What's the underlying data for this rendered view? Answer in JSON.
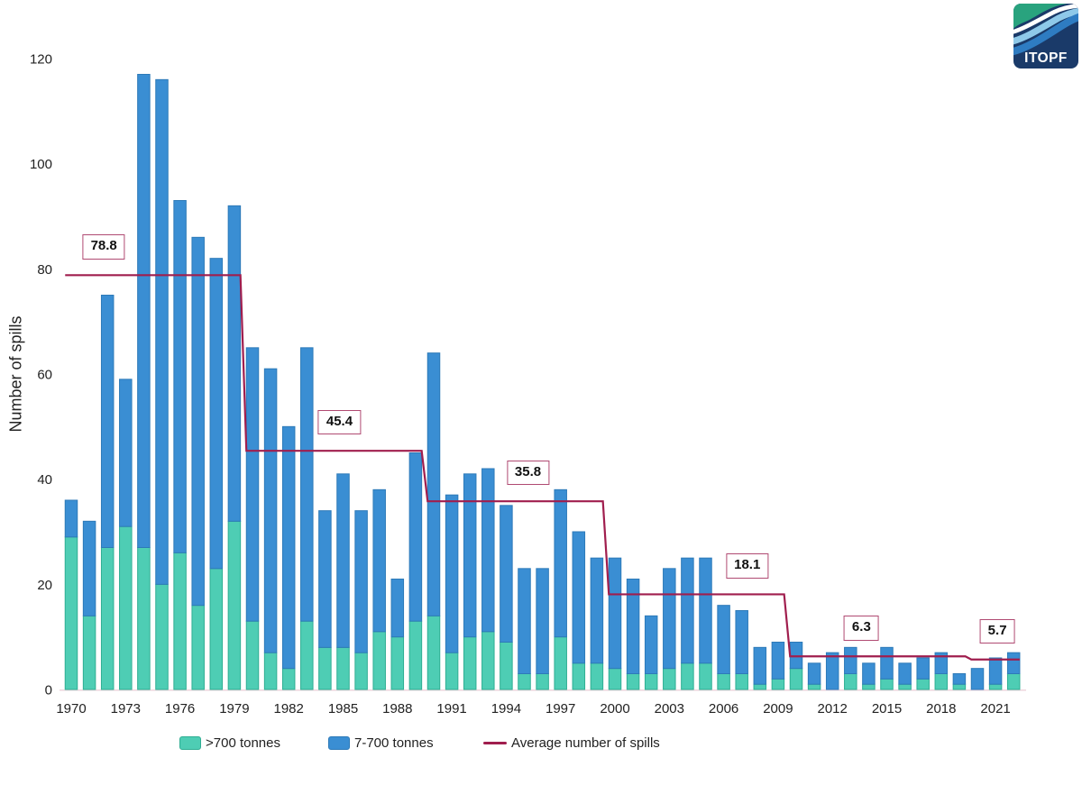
{
  "page": {
    "background": "#ffffff"
  },
  "y_axis_title": "Number of spills",
  "logo": {
    "text": "ITOPF",
    "navy": "#1a3a69",
    "green": "#29a37e",
    "white_wave": "#ffffff",
    "light_blue": "#8ec9e9",
    "mid_blue": "#2e7cc2"
  },
  "axis": {
    "baseline_color": "#eed6dd",
    "text_color": "#222222"
  },
  "legend": {
    "items": [
      {
        "label": ">700 tonnes",
        "type": "box",
        "color": "#4ecdb4",
        "border": "#2fae93"
      },
      {
        "label": "7-700 tonnes",
        "type": "box",
        "color": "#3a8ed3",
        "border": "#2d7ab8"
      },
      {
        "label": "Average number of spills",
        "type": "line",
        "color": "#a01e4e"
      }
    ]
  },
  "chart_data": {
    "type": "bar",
    "stacked": true,
    "title": "",
    "xlabel": "",
    "ylabel": "Number of spills",
    "ylim": [
      0,
      120
    ],
    "yticks": [
      0,
      20,
      40,
      60,
      80,
      100,
      120
    ],
    "grid": false,
    "legend_position": "bottom",
    "x_start_year": 1970,
    "x_end_year": 2022,
    "xtick_years": [
      1970,
      1973,
      1976,
      1979,
      1982,
      1985,
      1988,
      1991,
      1994,
      1997,
      2000,
      2003,
      2006,
      2009,
      2012,
      2015,
      2018,
      2021
    ],
    "series": [
      {
        "name": ">700 tonnes",
        "color": "#4ecdb4",
        "edge_color": "#2fae93",
        "values": [
          29,
          14,
          27,
          31,
          27,
          20,
          26,
          16,
          23,
          32,
          13,
          7,
          4,
          13,
          8,
          8,
          7,
          11,
          10,
          13,
          14,
          7,
          10,
          11,
          9,
          3,
          3,
          10,
          5,
          5,
          4,
          3,
          3,
          4,
          5,
          5,
          3,
          3,
          1,
          2,
          4,
          1,
          0,
          3,
          1,
          2,
          1,
          2,
          3,
          1,
          0,
          1,
          3
        ]
      },
      {
        "name": "7-700 tonnes",
        "color": "#3a8ed3",
        "edge_color": "#2d7ab8",
        "values": [
          7,
          18,
          48,
          28,
          90,
          96,
          67,
          70,
          59,
          60,
          52,
          54,
          46,
          52,
          26,
          33,
          27,
          27,
          11,
          32,
          50,
          30,
          31,
          31,
          26,
          20,
          20,
          28,
          25,
          20,
          21,
          18,
          11,
          19,
          20,
          20,
          13,
          12,
          7,
          7,
          5,
          4,
          7,
          5,
          4,
          6,
          4,
          4,
          4,
          2,
          4,
          5,
          4
        ]
      }
    ],
    "average_line": {
      "name": "Average number of spills",
      "color": "#a01e4e",
      "segments": [
        {
          "label": "78.8",
          "value": 78.8,
          "start_year": 1970,
          "end_year": 1979,
          "label_year": 1971.8
        },
        {
          "label": "45.4",
          "value": 45.4,
          "start_year": 1980,
          "end_year": 1989,
          "label_year": 1984.8
        },
        {
          "label": "35.8",
          "value": 35.8,
          "start_year": 1990,
          "end_year": 1999,
          "label_year": 1995.2
        },
        {
          "label": "18.1",
          "value": 18.1,
          "start_year": 2000,
          "end_year": 2009,
          "label_year": 2007.3
        },
        {
          "label": "6.3",
          "value": 6.3,
          "start_year": 2010,
          "end_year": 2019,
          "label_year": 2013.6
        },
        {
          "label": "5.7",
          "value": 5.7,
          "start_year": 2020,
          "end_year": 2022,
          "label_year": 2021.1
        }
      ]
    }
  }
}
